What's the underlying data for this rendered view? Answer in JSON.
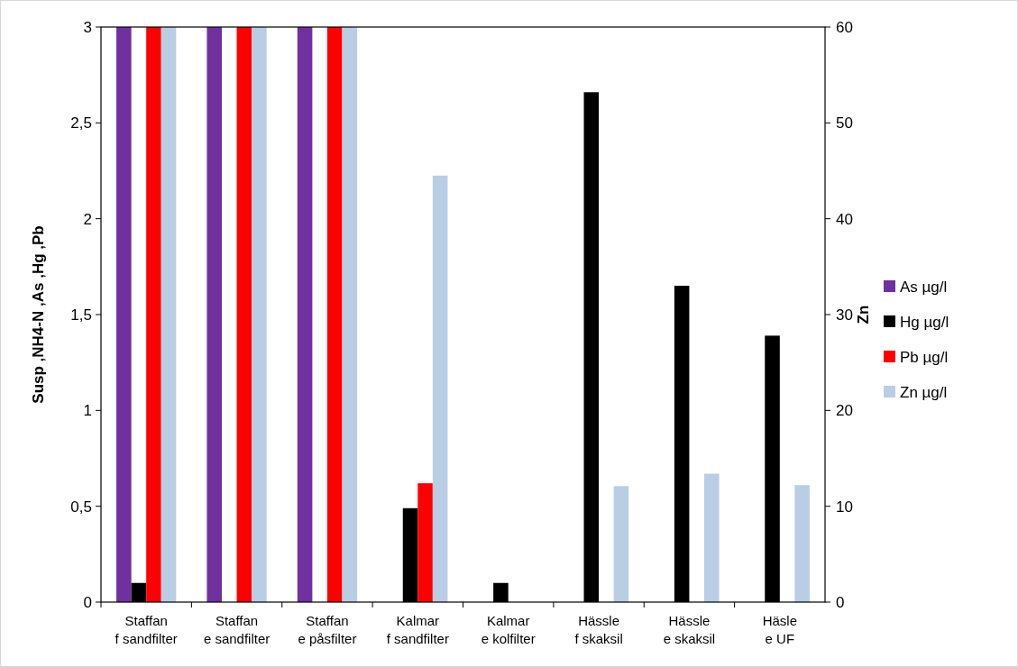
{
  "chart_data": {
    "type": "bar",
    "categories": [
      "Staffan\nf sandfilter",
      "Staffan\ne sandfilter",
      "Staffan\ne påsfilter",
      "Kalmar\nf sandfilter",
      "Kalmar\ne kolfilter",
      "Hässle\nf skaksil",
      "Hässle\ne skaksil",
      "Häsle\ne UF"
    ],
    "series": [
      {
        "name": "As µg/l",
        "color": "#7030a0",
        "values": [
          3,
          3,
          3,
          null,
          null,
          null,
          null,
          null
        ]
      },
      {
        "name": "Hg µg/l",
        "color": "#000000",
        "values": [
          0.1,
          null,
          null,
          0.49,
          0.1,
          2.66,
          1.65,
          1.39
        ]
      },
      {
        "name": "Pb µg/l",
        "color": "#ff0000",
        "values": [
          3,
          3,
          3,
          0.62,
          null,
          null,
          null,
          null
        ]
      },
      {
        "name": "Zn µg/l",
        "color": "#b9cde5",
        "axis": "y2",
        "values": [
          60,
          60,
          60,
          44.5,
          null,
          12.1,
          13.4,
          12.2
        ]
      }
    ],
    "ylabel": "Susp ,NH4-N ,As ,Hg ,Pb",
    "y2label": "Zn",
    "ylim": [
      0,
      3
    ],
    "yticks": [
      0,
      {
        "value": 0.5,
        "label": "0,5"
      },
      1,
      {
        "value": 1.5,
        "label": "1,5"
      },
      2,
      {
        "value": 2.5,
        "label": "2,5"
      },
      3
    ],
    "y2lim": [
      0,
      60
    ],
    "y2ticks": [
      0,
      10,
      20,
      30,
      40,
      50,
      60
    ],
    "legend": "right",
    "grid": false
  }
}
